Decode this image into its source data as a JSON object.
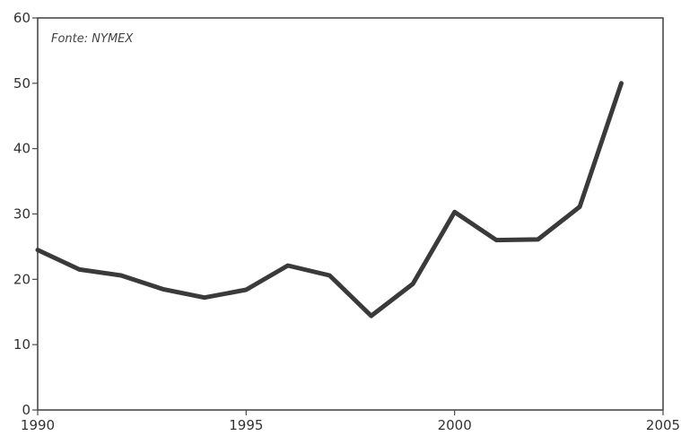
{
  "chart_data": {
    "type": "line",
    "title": "",
    "xlabel": "",
    "ylabel": "",
    "annotation": "Fonte: NYMEX",
    "xlim": [
      1990,
      2005
    ],
    "ylim": [
      0,
      60
    ],
    "x_ticks": [
      1990,
      1995,
      2000,
      2005
    ],
    "x_tick_labels": [
      "1990",
      "1995",
      "2000",
      "2005"
    ],
    "y_ticks": [
      0,
      10,
      20,
      30,
      40,
      50,
      60
    ],
    "y_tick_labels": [
      "0",
      "10",
      "20",
      "30",
      "40",
      "50",
      "60"
    ],
    "grid": false,
    "legend": "none",
    "series": [
      {
        "color": "#3a3a3a",
        "x": [
          1990,
          1991,
          1992,
          1993,
          1994,
          1995,
          1996,
          1997,
          1998,
          1999,
          2000,
          2001,
          2002,
          2003,
          2004
        ],
        "values": [
          24.5,
          21.5,
          20.6,
          18.5,
          17.2,
          18.4,
          22.1,
          20.6,
          14.4,
          19.3,
          30.3,
          26.0,
          26.1,
          31.1,
          50.0
        ]
      }
    ]
  }
}
